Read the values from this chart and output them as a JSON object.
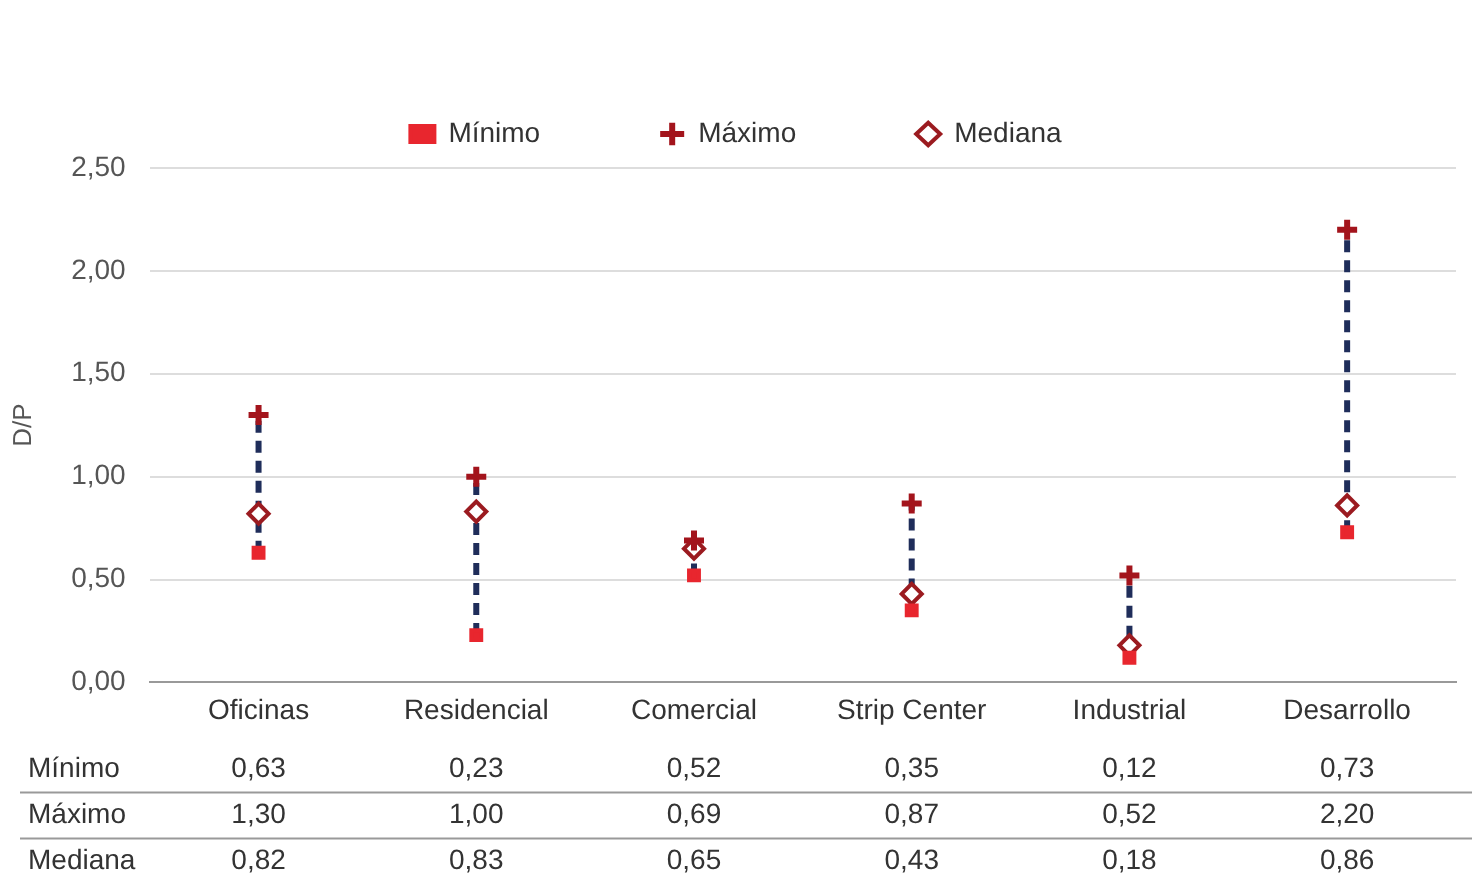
{
  "chart_data": {
    "type": "scatter",
    "ylabel": "D/P",
    "categories": [
      "Oficinas",
      "Residencial",
      "Comercial",
      "Strip Center",
      "Industrial",
      "Desarrollo"
    ],
    "series": [
      {
        "name": "Mínimo",
        "color": "#e8262e",
        "marker": "square",
        "values": [
          0.63,
          0.23,
          0.52,
          0.35,
          0.12,
          0.73
        ],
        "value_labels": [
          "0,63",
          "0,23",
          "0,52",
          "0,35",
          "0,12",
          "0,73"
        ]
      },
      {
        "name": "Máximo",
        "color": "#a3141c",
        "marker": "cross",
        "values": [
          1.3,
          1.0,
          0.69,
          0.87,
          0.52,
          2.2
        ],
        "value_labels": [
          "1,30",
          "1,00",
          "0,69",
          "0,87",
          "0,52",
          "2,20"
        ]
      },
      {
        "name": "Mediana",
        "color": "#9b1b20",
        "marker": "diamond",
        "values": [
          0.82,
          0.83,
          0.65,
          0.43,
          0.18,
          0.86
        ],
        "value_labels": [
          "0,82",
          "0,83",
          "0,65",
          "0,43",
          "0,18",
          "0,86"
        ]
      }
    ],
    "ylim": [
      0,
      2.5
    ],
    "yticks": [
      {
        "value": 0,
        "label": "0,00"
      },
      {
        "value": 0.5,
        "label": "0,50"
      },
      {
        "value": 1,
        "label": "1,00"
      },
      {
        "value": 1.5,
        "label": "1,50"
      },
      {
        "value": 2,
        "label": "2,00"
      },
      {
        "value": 2.5,
        "label": "2,50"
      }
    ],
    "grid": "y",
    "legend": "top"
  }
}
